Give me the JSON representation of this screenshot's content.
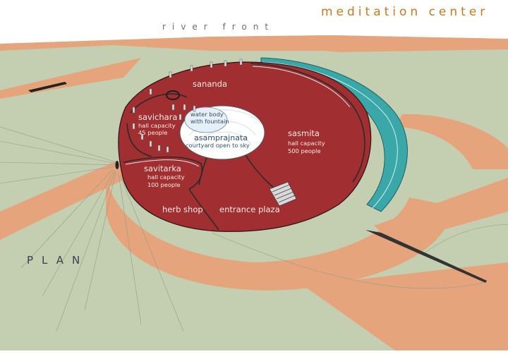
{
  "title": "meditation center",
  "river_label": "river front",
  "plan_label": "PLAN",
  "zones": {
    "sananda": {
      "name": "sananda"
    },
    "savichara": {
      "name": "savichara",
      "line1": "hall capacity",
      "line2": "45 people"
    },
    "savitarka": {
      "name": "savitarka",
      "line1": "hall capacity",
      "line2": "100 people"
    },
    "sasmita": {
      "name": "sasmita",
      "line1": "hall capacity",
      "line2": "500 people"
    },
    "water": {
      "line1": "water body",
      "line2": "with fountain"
    },
    "asamprajnata": {
      "name": "asamprajnata",
      "line1": "courtyard open to sky"
    },
    "herb_shop": {
      "name": "herb shop"
    },
    "entrance_plaza": {
      "name": "entrance plaza"
    }
  },
  "colors": {
    "ground": "#c4ceb0",
    "path": "#e5a47c",
    "floor": "#a12e31",
    "water_channel": "#3aa7a8",
    "courtyard": "#ffffff",
    "title": "#c8781e"
  }
}
